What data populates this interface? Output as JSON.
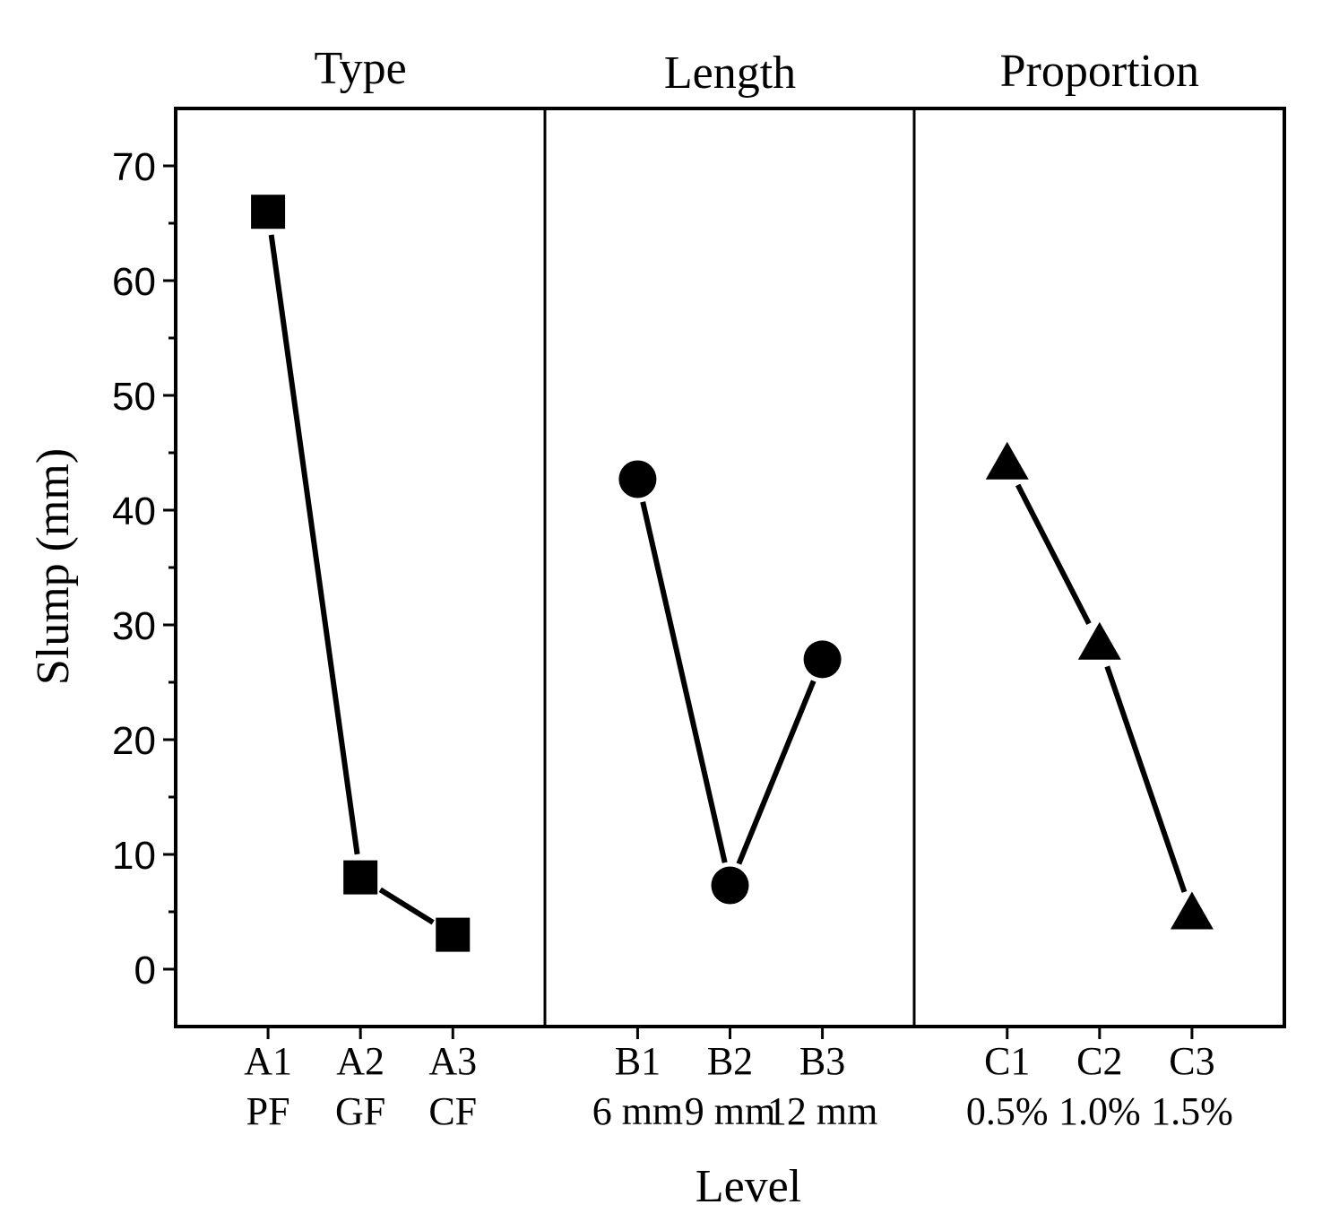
{
  "chart_data": {
    "type": "line",
    "xlabel": "Level",
    "ylabel": "Slump (mm)",
    "ylim": [
      -5,
      75
    ],
    "yticks": [
      0,
      10,
      20,
      30,
      40,
      50,
      60,
      70
    ],
    "ytick_labels": [
      "0",
      "10",
      "20",
      "30",
      "40",
      "50",
      "60",
      "70"
    ],
    "grid": false,
    "panels": [
      {
        "title": "Type",
        "marker": "square",
        "categories": [
          {
            "code": "A1",
            "label": "PF"
          },
          {
            "code": "A2",
            "label": "GF"
          },
          {
            "code": "A3",
            "label": "CF"
          }
        ],
        "values": [
          66,
          8,
          3
        ]
      },
      {
        "title": "Length",
        "marker": "circle",
        "categories": [
          {
            "code": "B1",
            "label": "6 mm"
          },
          {
            "code": "B2",
            "label": "9 mm"
          },
          {
            "code": "B3",
            "label": "12 mm"
          }
        ],
        "values": [
          42.7,
          7.3,
          27
        ]
      },
      {
        "title": "Proportion",
        "marker": "triangle",
        "categories": [
          {
            "code": "C1",
            "label": "0.5%"
          },
          {
            "code": "C2",
            "label": "1.0%"
          },
          {
            "code": "C3",
            "label": "1.5%"
          }
        ],
        "values": [
          44,
          28.3,
          4.8
        ]
      }
    ]
  }
}
